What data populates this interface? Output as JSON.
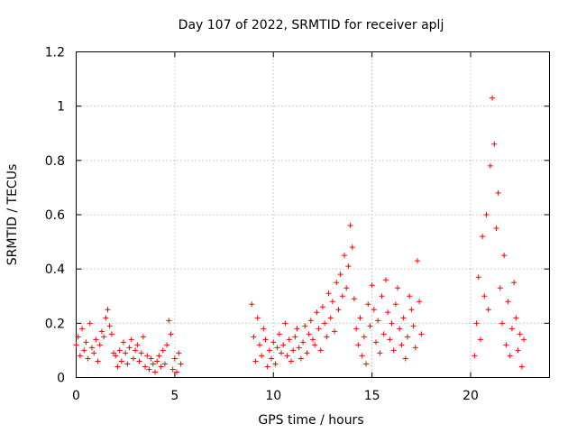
{
  "chart_data": {
    "type": "scatter",
    "title": "Day 107 of 2022, SRMTID for receiver aplj",
    "xlabel": "GPS time / hours",
    "ylabel": "SRMTID / TECUs",
    "xlim": [
      0,
      24
    ],
    "ylim": [
      0,
      1.2
    ],
    "xticks": [
      0,
      5,
      10,
      15,
      20
    ],
    "xtick_labels": [
      "0",
      "5",
      "10",
      "15",
      "20"
    ],
    "yticks": [
      0,
      0.2,
      0.4,
      0.6,
      0.8,
      1.0,
      1.2
    ],
    "ytick_labels": [
      "0",
      "0.2",
      "0.4",
      "0.6",
      "0.8",
      "1",
      "1.2"
    ],
    "grid": true,
    "marker": "+",
    "series": [
      {
        "name": "SRMTID",
        "color": "#ff0000",
        "points": [
          [
            0.0,
            0.12
          ],
          [
            0.1,
            0.15
          ],
          [
            0.2,
            0.08
          ],
          [
            0.3,
            0.18
          ],
          [
            0.4,
            0.1
          ],
          [
            0.5,
            0.13
          ],
          [
            0.6,
            0.07
          ],
          [
            0.7,
            0.2
          ],
          [
            0.8,
            0.11
          ],
          [
            0.9,
            0.09
          ],
          [
            1.0,
            0.14
          ],
          [
            1.1,
            0.06
          ],
          [
            1.2,
            0.12
          ],
          [
            1.3,
            0.17
          ],
          [
            1.4,
            0.15
          ],
          [
            1.5,
            0.22
          ],
          [
            1.6,
            0.25
          ],
          [
            1.7,
            0.19
          ],
          [
            1.8,
            0.16
          ],
          [
            1.9,
            0.09
          ],
          [
            2.0,
            0.08
          ],
          [
            2.1,
            0.04
          ],
          [
            2.2,
            0.1
          ],
          [
            2.3,
            0.06
          ],
          [
            2.4,
            0.13
          ],
          [
            2.5,
            0.09
          ],
          [
            2.6,
            0.05
          ],
          [
            2.7,
            0.11
          ],
          [
            2.8,
            0.14
          ],
          [
            2.9,
            0.07
          ],
          [
            3.0,
            0.1
          ],
          [
            3.1,
            0.12
          ],
          [
            3.2,
            0.06
          ],
          [
            3.3,
            0.09
          ],
          [
            3.4,
            0.15
          ],
          [
            3.5,
            0.04
          ],
          [
            3.6,
            0.08
          ],
          [
            3.7,
            0.03
          ],
          [
            3.8,
            0.07
          ],
          [
            3.9,
            0.05
          ],
          [
            4.0,
            0.02
          ],
          [
            4.1,
            0.06
          ],
          [
            4.2,
            0.08
          ],
          [
            4.3,
            0.04
          ],
          [
            4.4,
            0.1
          ],
          [
            4.5,
            0.05
          ],
          [
            4.6,
            0.12
          ],
          [
            4.7,
            0.21
          ],
          [
            4.8,
            0.16
          ],
          [
            4.9,
            0.03
          ],
          [
            5.0,
            0.07
          ],
          [
            5.1,
            0.02
          ],
          [
            5.2,
            0.09
          ],
          [
            5.3,
            0.05
          ],
          [
            8.9,
            0.27
          ],
          [
            9.0,
            0.15
          ],
          [
            9.1,
            0.06
          ],
          [
            9.2,
            0.22
          ],
          [
            9.3,
            0.12
          ],
          [
            9.4,
            0.08
          ],
          [
            9.5,
            0.18
          ],
          [
            9.6,
            0.14
          ],
          [
            9.7,
            0.04
          ],
          [
            9.8,
            0.1
          ],
          [
            9.9,
            0.07
          ],
          [
            10.0,
            0.13
          ],
          [
            10.1,
            0.05
          ],
          [
            10.2,
            0.11
          ],
          [
            10.3,
            0.16
          ],
          [
            10.4,
            0.09
          ],
          [
            10.5,
            0.12
          ],
          [
            10.6,
            0.2
          ],
          [
            10.7,
            0.08
          ],
          [
            10.8,
            0.14
          ],
          [
            10.9,
            0.06
          ],
          [
            11.0,
            0.1
          ],
          [
            11.1,
            0.15
          ],
          [
            11.2,
            0.18
          ],
          [
            11.3,
            0.11
          ],
          [
            11.4,
            0.07
          ],
          [
            11.5,
            0.13
          ],
          [
            11.6,
            0.19
          ],
          [
            11.7,
            0.09
          ],
          [
            11.8,
            0.16
          ],
          [
            11.9,
            0.21
          ],
          [
            12.0,
            0.14
          ],
          [
            12.1,
            0.12
          ],
          [
            12.2,
            0.24
          ],
          [
            12.3,
            0.18
          ],
          [
            12.4,
            0.1
          ],
          [
            12.5,
            0.26
          ],
          [
            12.6,
            0.2
          ],
          [
            12.7,
            0.15
          ],
          [
            12.8,
            0.31
          ],
          [
            12.9,
            0.22
          ],
          [
            13.0,
            0.28
          ],
          [
            13.1,
            0.17
          ],
          [
            13.2,
            0.35
          ],
          [
            13.3,
            0.25
          ],
          [
            13.4,
            0.38
          ],
          [
            13.5,
            0.3
          ],
          [
            13.6,
            0.45
          ],
          [
            13.7,
            0.33
          ],
          [
            13.8,
            0.41
          ],
          [
            13.9,
            0.56
          ],
          [
            14.0,
            0.48
          ],
          [
            14.1,
            0.29
          ],
          [
            14.2,
            0.18
          ],
          [
            14.3,
            0.12
          ],
          [
            14.4,
            0.22
          ],
          [
            14.5,
            0.08
          ],
          [
            14.6,
            0.15
          ],
          [
            14.7,
            0.05
          ],
          [
            14.8,
            0.27
          ],
          [
            14.9,
            0.19
          ],
          [
            15.0,
            0.34
          ],
          [
            15.1,
            0.25
          ],
          [
            15.2,
            0.13
          ],
          [
            15.3,
            0.21
          ],
          [
            15.4,
            0.09
          ],
          [
            15.5,
            0.3
          ],
          [
            15.6,
            0.16
          ],
          [
            15.7,
            0.36
          ],
          [
            15.8,
            0.24
          ],
          [
            15.9,
            0.14
          ],
          [
            16.0,
            0.2
          ],
          [
            16.1,
            0.1
          ],
          [
            16.2,
            0.27
          ],
          [
            16.3,
            0.33
          ],
          [
            16.4,
            0.18
          ],
          [
            16.5,
            0.12
          ],
          [
            16.6,
            0.22
          ],
          [
            16.7,
            0.07
          ],
          [
            16.8,
            0.15
          ],
          [
            16.9,
            0.3
          ],
          [
            17.0,
            0.25
          ],
          [
            17.1,
            0.19
          ],
          [
            17.2,
            0.11
          ],
          [
            17.3,
            0.43
          ],
          [
            17.4,
            0.28
          ],
          [
            17.5,
            0.16
          ],
          [
            20.2,
            0.08
          ],
          [
            20.3,
            0.2
          ],
          [
            20.4,
            0.37
          ],
          [
            20.5,
            0.14
          ],
          [
            20.6,
            0.52
          ],
          [
            20.7,
            0.3
          ],
          [
            20.8,
            0.6
          ],
          [
            20.9,
            0.25
          ],
          [
            21.0,
            0.78
          ],
          [
            21.1,
            1.03
          ],
          [
            21.2,
            0.86
          ],
          [
            21.3,
            0.55
          ],
          [
            21.4,
            0.68
          ],
          [
            21.5,
            0.33
          ],
          [
            21.6,
            0.2
          ],
          [
            21.7,
            0.45
          ],
          [
            21.8,
            0.12
          ],
          [
            21.9,
            0.28
          ],
          [
            22.0,
            0.08
          ],
          [
            22.1,
            0.18
          ],
          [
            22.2,
            0.35
          ],
          [
            22.3,
            0.22
          ],
          [
            22.4,
            0.1
          ],
          [
            22.5,
            0.16
          ],
          [
            22.6,
            0.04
          ],
          [
            22.7,
            0.14
          ]
        ]
      }
    ]
  }
}
